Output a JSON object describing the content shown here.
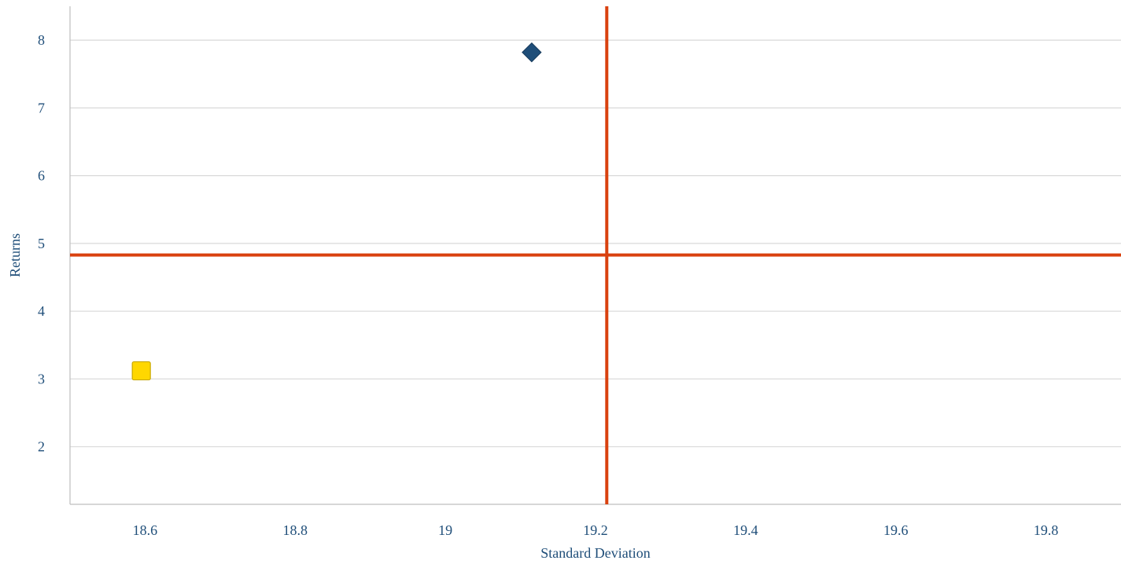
{
  "chart_data": {
    "type": "scatter",
    "title": "",
    "xlabel": "Standard Deviation",
    "ylabel": "Returns",
    "xlim": [
      18.5,
      19.9
    ],
    "ylim": [
      1.15,
      8.5
    ],
    "x_ticks": [
      "18.6",
      "18.8",
      "19",
      "19.2",
      "19.4",
      "19.6",
      "19.8"
    ],
    "y_ticks": [
      "2",
      "3",
      "4",
      "5",
      "6",
      "7",
      "8"
    ],
    "grid": "horizontal",
    "legend": "none",
    "series": [
      {
        "marker": "diamond",
        "color": "#1f4e79",
        "points": [
          {
            "x": 19.115,
            "y": 7.82
          }
        ]
      },
      {
        "marker": "square",
        "color": "#ffd700",
        "points": [
          {
            "x": 18.595,
            "y": 3.12
          }
        ]
      }
    ],
    "reference_lines": {
      "color": "#d9410f",
      "vertical_x": 19.215,
      "horizontal_y": 4.83
    }
  }
}
